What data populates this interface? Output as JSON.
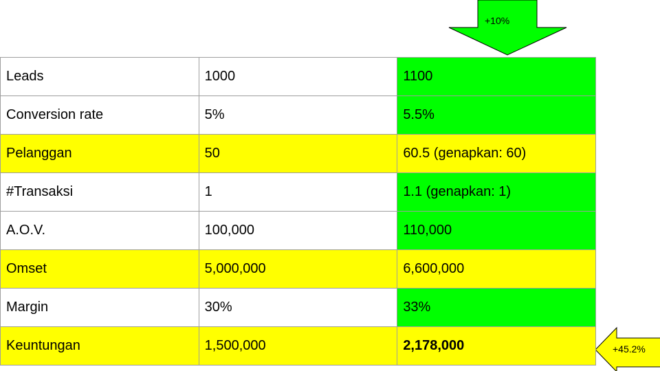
{
  "colors": {
    "highlight_yellow": "#ffff00",
    "highlight_green": "#00ff00"
  },
  "arrows": {
    "top_label": "+10%",
    "right_label": "+45.2%"
  },
  "table": {
    "rows": [
      {
        "label": "Leads",
        "before": "1000",
        "after": "1100",
        "row_color": "white",
        "after_color": "green"
      },
      {
        "label": "Conversion rate",
        "before": "5%",
        "after": "5.5%",
        "row_color": "white",
        "after_color": "green"
      },
      {
        "label": "Pelanggan",
        "before": "50",
        "after": "60.5 (genapkan: 60)",
        "row_color": "yellow",
        "after_color": "yellow"
      },
      {
        "label": "#Transaksi",
        "before": "1",
        "after": "1.1 (genapkan: 1)",
        "row_color": "white",
        "after_color": "green"
      },
      {
        "label": "A.O.V.",
        "before": "100,000",
        "after": "110,000",
        "row_color": "white",
        "after_color": "green"
      },
      {
        "label": "Omset",
        "before": "5,000,000",
        "after": "6,600,000",
        "row_color": "yellow",
        "after_color": "yellow"
      },
      {
        "label": "Margin",
        "before": "30%",
        "after": "33%",
        "row_color": "white",
        "after_color": "green"
      },
      {
        "label": "Keuntungan",
        "before": "1,500,000",
        "after": "2,178,000",
        "row_color": "yellow",
        "after_color": "yellow"
      }
    ]
  }
}
